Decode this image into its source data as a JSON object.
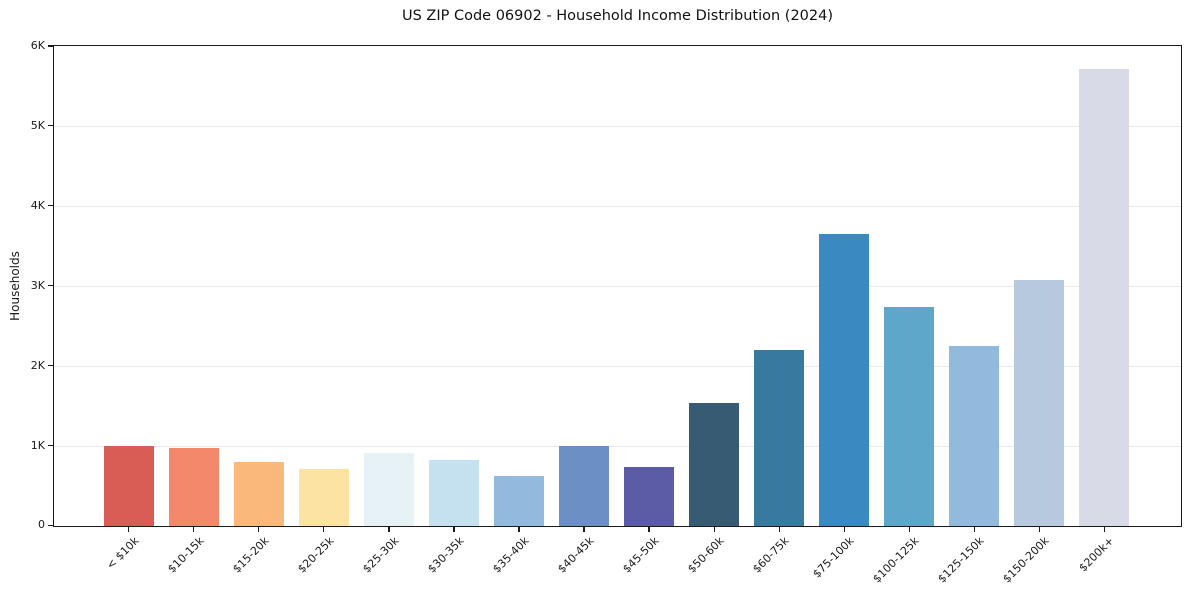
{
  "chart_data": {
    "type": "bar",
    "title": "US ZIP Code 06902 - Household Income Distribution (2024)",
    "xlabel": "",
    "ylabel": "Households",
    "categories": [
      "< $10k",
      "$10-15k",
      "$15-20k",
      "$20-25k",
      "$25-30k",
      "$30-35k",
      "$35-40k",
      "$40-45k",
      "$45-50k",
      "$50-60k",
      "$60-75k",
      "$75-100k",
      "$100-125k",
      "$125-150k",
      "$150-200k",
      "$200k+"
    ],
    "values": [
      1000,
      980,
      800,
      715,
      920,
      820,
      620,
      1000,
      735,
      1545,
      2200,
      3660,
      2740,
      2250,
      3085,
      5720
    ],
    "bar_colors": [
      "#d95d55",
      "#f4886b",
      "#fab97a",
      "#fce3a4",
      "#e7f2f6",
      "#c5e1ef",
      "#91badd",
      "#6c90c6",
      "#5c5ba6",
      "#365b72",
      "#37799f",
      "#3a8ac1",
      "#5fa6cb",
      "#91badc",
      "#b7c9de",
      "#d9dae8"
    ],
    "ylim": [
      0,
      6000
    ],
    "ytick_values": [
      0,
      1000,
      2000,
      3000,
      4000,
      5000,
      6000
    ],
    "ytick_labels": [
      "0",
      "1K",
      "2K",
      "3K",
      "4K",
      "5K",
      "6K"
    ],
    "grid": "horizontal",
    "legend": "none",
    "style_colors": {
      "grid_color": "#e9e9ee",
      "spine_color": "#1a1a1a",
      "text_color": "#1a1a1a",
      "background": "#ffffff"
    }
  }
}
